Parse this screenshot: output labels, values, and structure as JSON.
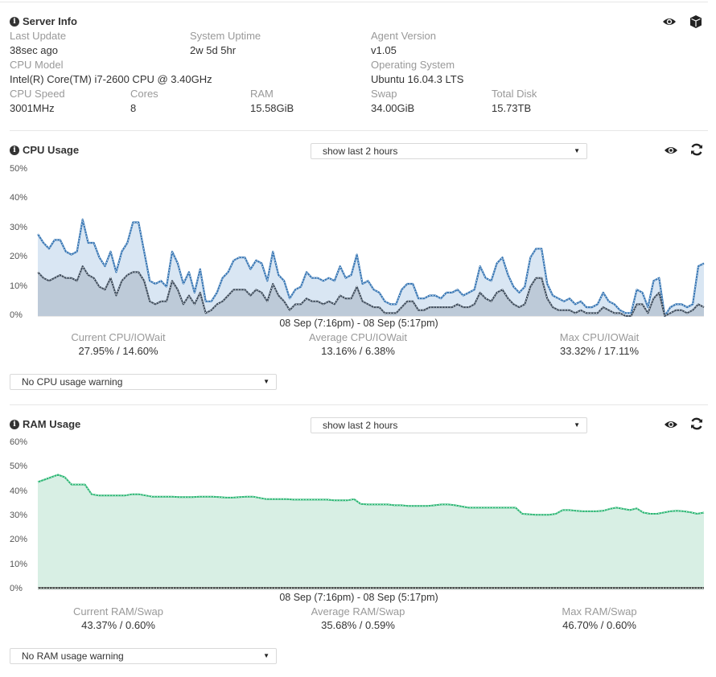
{
  "server_info": {
    "title": "Server Info",
    "fields": {
      "last_update": {
        "label": "Last Update",
        "value": "38sec ago"
      },
      "system_uptime": {
        "label": "System Uptime",
        "value": "2w 5d 5hr"
      },
      "agent_version": {
        "label": "Agent Version",
        "value": "v1.05"
      },
      "cpu_model": {
        "label": "CPU Model",
        "value": "Intel(R) Core(TM) i7-2600 CPU @ 3.40GHz"
      },
      "operating_system": {
        "label": "Operating System",
        "value": "Ubuntu 16.04.3 LTS"
      },
      "cpu_speed": {
        "label": "CPU Speed",
        "value": "3001MHz"
      },
      "cores": {
        "label": "Cores",
        "value": "8"
      },
      "ram": {
        "label": "RAM",
        "value": "15.58GiB"
      },
      "swap": {
        "label": "Swap",
        "value": "34.00GiB"
      },
      "total_disk": {
        "label": "Total Disk",
        "value": "15.73TB"
      }
    }
  },
  "cpu": {
    "title": "CPU Usage",
    "period_select": "show last 2 hours",
    "warning_select": "No CPU usage warning",
    "range_label": "08 Sep (7:16pm) - 08 Sep (5:17pm)",
    "stats": {
      "current": {
        "label": "Current CPU/IOWait",
        "value": "27.95% / 14.60%"
      },
      "average": {
        "label": "Average CPU/IOWait",
        "value": "13.16% / 6.38%"
      },
      "max": {
        "label": "Max CPU/IOWait",
        "value": "33.32% / 17.11%"
      }
    }
  },
  "ram": {
    "title": "RAM Usage",
    "period_select": "show last 2 hours",
    "warning_select": "No RAM usage warning",
    "range_label": "08 Sep (7:16pm) - 08 Sep (5:17pm)",
    "stats": {
      "current": {
        "label": "Current RAM/Swap",
        "value": "43.37% / 0.60%"
      },
      "average": {
        "label": "Average RAM/Swap",
        "value": "35.68% / 0.59%"
      },
      "max": {
        "label": "Max RAM/Swap",
        "value": "46.70% / 0.60%"
      }
    }
  },
  "colors": {
    "cpu_line": "#3a78b5",
    "cpu_fill": "#d9e6f3",
    "iowait_line": "#3c4a5a",
    "iowait_fill": "#b3c0cf",
    "ram_line": "#2bb673",
    "ram_fill": "#d8efe4",
    "swap_line": "#333333"
  },
  "icons": [
    "info-icon",
    "eye-icon",
    "cube-icon",
    "refresh-icon",
    "chevron-down-icon"
  ],
  "chart_data": [
    {
      "type": "area",
      "title": "CPU Usage",
      "xlabel": "08 Sep (7:16pm) - 08 Sep (5:17pm)",
      "ylim": [
        0,
        50
      ],
      "yticks": [
        "0%",
        "10%",
        "20%",
        "30%",
        "40%",
        "50%"
      ],
      "grid": false,
      "series": [
        {
          "name": "CPU",
          "values": [
            28,
            25,
            23,
            26,
            26,
            22,
            21,
            22,
            33,
            25,
            25,
            20,
            17,
            22,
            15,
            22,
            25,
            32,
            32,
            22,
            12,
            11,
            12,
            10,
            22,
            18,
            11,
            15,
            8,
            16,
            5,
            5,
            8,
            13,
            15,
            19,
            20,
            20,
            16,
            19,
            18,
            12,
            22,
            14,
            12,
            6,
            9,
            10,
            15,
            13,
            13,
            12,
            13,
            12,
            17,
            13,
            14,
            21,
            11,
            12,
            9,
            8,
            5,
            4,
            4,
            9,
            11,
            11,
            6,
            6,
            7,
            7,
            6,
            8,
            8,
            9,
            7,
            8,
            9,
            17,
            13,
            12,
            18,
            20,
            14,
            10,
            8,
            10,
            20,
            23,
            23,
            11,
            7,
            6,
            5,
            6,
            4,
            5,
            3,
            3,
            4,
            8,
            5,
            4,
            2,
            1,
            1,
            9,
            8,
            3,
            12,
            13,
            0,
            3,
            4,
            4,
            3,
            4,
            17,
            18
          ]
        },
        {
          "name": "IOWait",
          "values": [
            15,
            13,
            12,
            13,
            14,
            13,
            13,
            12,
            17,
            14,
            13,
            10,
            9,
            13,
            7,
            12,
            14,
            15,
            15,
            12,
            5,
            4,
            5,
            5,
            12,
            9,
            4,
            7,
            4,
            8,
            1,
            2,
            4,
            5,
            7,
            9,
            9,
            9,
            7,
            9,
            8,
            5,
            11,
            7,
            5,
            2,
            4,
            4,
            6,
            5,
            5,
            4,
            5,
            4,
            7,
            6,
            6,
            10,
            5,
            4,
            3,
            3,
            1,
            1,
            1,
            3,
            5,
            5,
            2,
            2,
            3,
            3,
            3,
            3,
            3,
            4,
            3,
            3,
            4,
            8,
            6,
            5,
            8,
            9,
            6,
            4,
            3,
            4,
            10,
            13,
            13,
            6,
            3,
            2,
            2,
            2,
            1,
            2,
            1,
            1,
            1,
            3,
            2,
            1,
            1,
            0,
            0,
            4,
            4,
            1,
            6,
            8,
            0,
            1,
            2,
            2,
            1,
            2,
            4,
            3
          ]
        }
      ]
    },
    {
      "type": "area",
      "title": "RAM Usage",
      "xlabel": "08 Sep (7:16pm) - 08 Sep (5:17pm)",
      "ylim": [
        0,
        60
      ],
      "yticks": [
        "0%",
        "10%",
        "20%",
        "30%",
        "40%",
        "50%",
        "60%"
      ],
      "grid": false,
      "series": [
        {
          "name": "RAM",
          "values": [
            44,
            45,
            46,
            47,
            46,
            43,
            43,
            43,
            39,
            38.5,
            38.5,
            38.5,
            38.5,
            38.5,
            39,
            39,
            38.5,
            38,
            38,
            38,
            38,
            37.8,
            37.8,
            37.8,
            38,
            38,
            38,
            37.8,
            37.6,
            37.6,
            37.8,
            38,
            38,
            37.5,
            37,
            37,
            37,
            37,
            36.8,
            36.8,
            36.8,
            36.8,
            36.8,
            36.8,
            36.5,
            36.5,
            36.5,
            37,
            35,
            34.8,
            34.8,
            34.8,
            34.8,
            34.5,
            34.5,
            34.2,
            34.2,
            34.2,
            34.2,
            34.5,
            34.8,
            34.8,
            34.5,
            34,
            33.5,
            33.5,
            33.5,
            33.5,
            33.5,
            33.5,
            33.5,
            33.5,
            31,
            30.8,
            30.6,
            30.6,
            30.6,
            31,
            32.5,
            32.5,
            32.2,
            32,
            32,
            32,
            32.2,
            33,
            33.5,
            33,
            32.5,
            33.2,
            31.5,
            31,
            31,
            31.5,
            32,
            32.2,
            32,
            31.6,
            31,
            31.5
          ]
        },
        {
          "name": "Swap",
          "values": [
            0.6,
            0.6,
            0.6,
            0.6,
            0.6,
            0.6,
            0.6,
            0.6,
            0.6,
            0.6,
            0.6,
            0.6,
            0.6,
            0.6,
            0.6,
            0.6,
            0.6,
            0.6,
            0.6,
            0.6
          ]
        }
      ]
    }
  ]
}
